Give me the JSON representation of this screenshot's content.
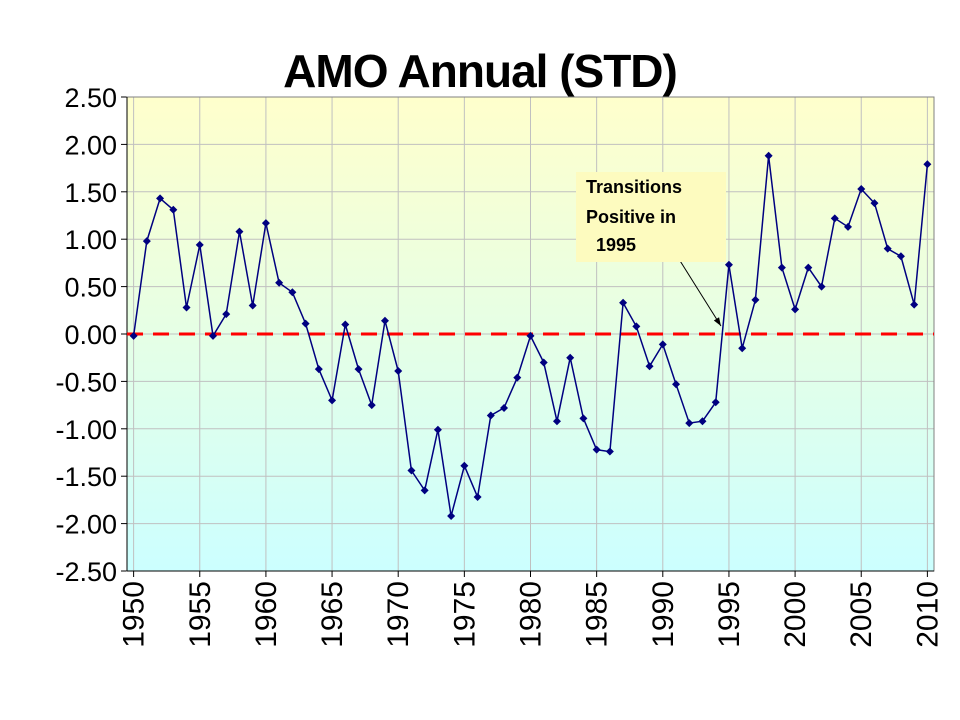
{
  "chart_data": {
    "type": "line",
    "title": "AMO Annual (STD)",
    "xlabel": "",
    "ylabel": "",
    "x": [
      1950,
      1951,
      1952,
      1953,
      1954,
      1955,
      1956,
      1957,
      1958,
      1959,
      1960,
      1961,
      1962,
      1963,
      1964,
      1965,
      1966,
      1967,
      1968,
      1969,
      1970,
      1971,
      1972,
      1973,
      1974,
      1975,
      1976,
      1977,
      1978,
      1979,
      1980,
      1981,
      1982,
      1983,
      1984,
      1985,
      1986,
      1987,
      1988,
      1989,
      1990,
      1991,
      1992,
      1993,
      1994,
      1995,
      1996,
      1997,
      1998,
      1999,
      2000,
      2001,
      2002,
      2003,
      2004,
      2005,
      2006,
      2007,
      2008,
      2009,
      2010
    ],
    "series": [
      {
        "name": "AMO Annual (STD)",
        "color": "#000080",
        "values": [
          -0.02,
          0.98,
          1.43,
          1.31,
          0.28,
          0.94,
          -0.02,
          0.21,
          1.08,
          0.3,
          1.17,
          0.54,
          0.44,
          0.11,
          -0.37,
          -0.7,
          0.1,
          -0.37,
          -0.75,
          0.14,
          -0.39,
          -1.44,
          -1.65,
          -1.01,
          -1.92,
          -1.39,
          -1.72,
          -0.86,
          -0.78,
          -0.46,
          -0.02,
          -0.3,
          -0.92,
          -0.25,
          -0.89,
          -1.22,
          -1.24,
          0.33,
          0.08,
          -0.34,
          -0.11,
          -0.53,
          -0.94,
          -0.92,
          -0.72,
          0.73,
          -0.15,
          0.36,
          1.88,
          0.7,
          0.26,
          0.7,
          0.5,
          1.22,
          1.13,
          1.53,
          1.38,
          0.9,
          0.82,
          0.31,
          1.79
        ]
      }
    ],
    "xlim": [
      1949.5,
      2010.5
    ],
    "ylim": [
      -2.5,
      2.5
    ],
    "yticks": [
      "2.50",
      "2.00",
      "1.50",
      "1.00",
      "0.50",
      "0.00",
      "-0.50",
      "-1.00",
      "-1.50",
      "-2.00",
      "-2.50"
    ],
    "xticks": [
      "1950",
      "1955",
      "1960",
      "1965",
      "1970",
      "1975",
      "1980",
      "1985",
      "1990",
      "1995",
      "2000",
      "2005",
      "2010"
    ],
    "reference_line": {
      "y": 0,
      "color": "#ff0000",
      "style": "dashed"
    },
    "grid": true,
    "annotation": {
      "lines": [
        "Transitions",
        "Positive in",
        "  1995"
      ],
      "points_to_year": 1995
    },
    "colors": {
      "background_top": "#ffffcc",
      "background_bottom": "#ccffff",
      "line": "#000080",
      "reference": "#ff0000",
      "grid": "#c0c0c0"
    }
  }
}
